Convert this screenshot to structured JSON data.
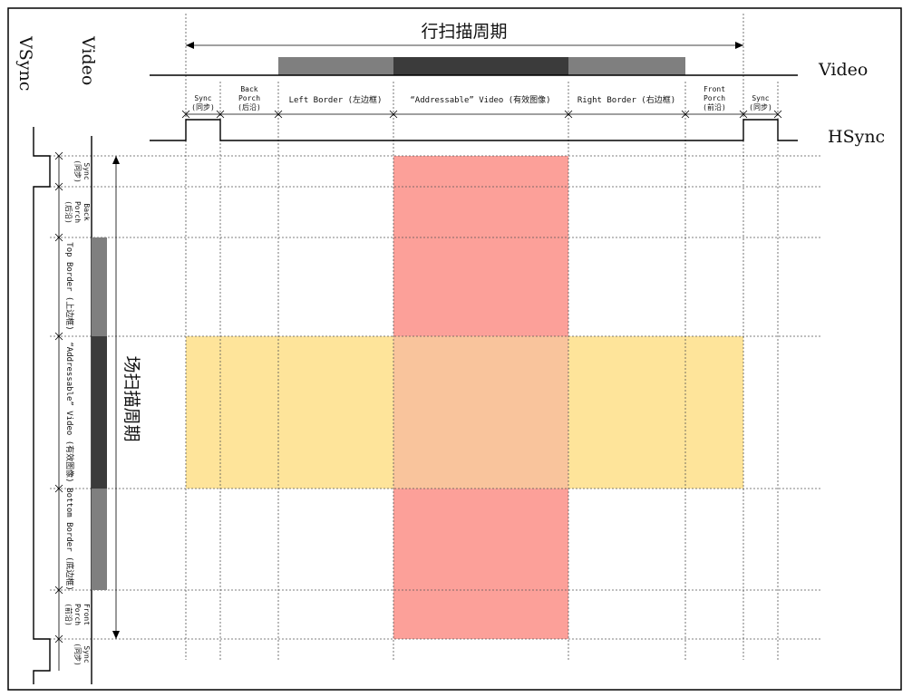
{
  "colors": {
    "border_bar": "#7f7f7f",
    "addressable_bar": "#3b3b3b",
    "vertical_band": "#fca099",
    "horizontal_band": "#fee49a",
    "overlap": "#f9c49c"
  },
  "horizontal": {
    "period_label": "行扫描周期",
    "video_label": "Video",
    "hsync_label": "HSync",
    "segments": [
      {
        "lines": [
          "Sync",
          "(同步)"
        ]
      },
      {
        "lines": [
          "Back",
          "Porch",
          "(后沿)"
        ]
      },
      {
        "lines": [
          "Left Border (左边框)"
        ]
      },
      {
        "lines": [
          "“Addressable” Video (有效图像)"
        ]
      },
      {
        "lines": [
          "Right Border (右边框)"
        ]
      },
      {
        "lines": [
          "Front",
          "Porch",
          "(前沿)"
        ]
      },
      {
        "lines": [
          "Sync",
          "(同步)"
        ]
      }
    ]
  },
  "vertical": {
    "period_label": "场扫描周期",
    "video_label": "Video",
    "vsync_label": "VSync",
    "segments": [
      {
        "lines": [
          "Sync",
          "(同步)"
        ]
      },
      {
        "lines": [
          "Back",
          "Porch",
          "(后沿)"
        ]
      },
      {
        "lines": [
          "Top Border (上边框)"
        ]
      },
      {
        "lines": [
          "“Addressable” Video (有效图像)"
        ]
      },
      {
        "lines": [
          "Bottom Border (底边框)"
        ]
      },
      {
        "lines": [
          "Front",
          "Porch",
          "(前沿)"
        ]
      },
      {
        "lines": [
          "Sync",
          "(同步)"
        ]
      }
    ]
  }
}
